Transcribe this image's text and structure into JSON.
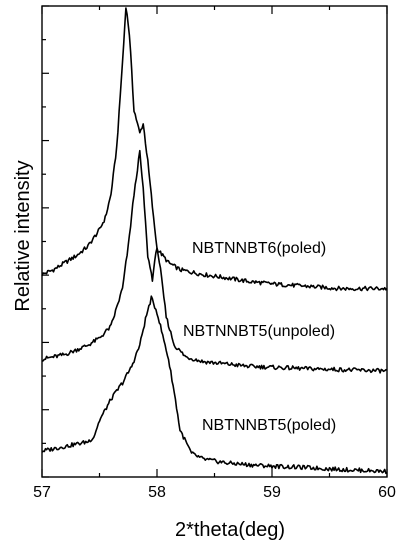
{
  "chart_data": {
    "type": "line",
    "xlabel": "2*theta(deg)",
    "ylabel": "Relative intensity",
    "xlim": [
      57,
      60
    ],
    "x_ticks": [
      57,
      58,
      59,
      60
    ],
    "y_ticks_labeled": false,
    "ylim": [
      0,
      100
    ],
    "grid": false,
    "series": [
      {
        "name": "NBTNNBT6(poled)",
        "points": [
          [
            57.0,
            43.0
          ],
          [
            57.1,
            44.0
          ],
          [
            57.2,
            45.5
          ],
          [
            57.3,
            47.0
          ],
          [
            57.4,
            49.0
          ],
          [
            57.5,
            52.5
          ],
          [
            57.55,
            55.0
          ],
          [
            57.6,
            60.0
          ],
          [
            57.65,
            70.0
          ],
          [
            57.7,
            88.0
          ],
          [
            57.73,
            100.0
          ],
          [
            57.76,
            94.0
          ],
          [
            57.8,
            78.0
          ],
          [
            57.85,
            73.0
          ],
          [
            57.88,
            75.0
          ],
          [
            57.92,
            67.0
          ],
          [
            57.97,
            55.0
          ],
          [
            58.0,
            48.5
          ],
          [
            58.1,
            45.5
          ],
          [
            58.2,
            44.0
          ],
          [
            58.4,
            43.0
          ],
          [
            58.6,
            42.3
          ],
          [
            58.8,
            41.5
          ],
          [
            59.0,
            41.0
          ],
          [
            59.3,
            40.5
          ],
          [
            59.6,
            40.0
          ],
          [
            60.0,
            40.0
          ]
        ]
      },
      {
        "name": "NBTNNBT5(unpoled)",
        "points": [
          [
            57.0,
            25.0
          ],
          [
            57.1,
            25.5
          ],
          [
            57.2,
            26.0
          ],
          [
            57.3,
            27.0
          ],
          [
            57.4,
            28.0
          ],
          [
            57.5,
            29.5
          ],
          [
            57.6,
            32.0
          ],
          [
            57.7,
            40.0
          ],
          [
            57.75,
            49.0
          ],
          [
            57.8,
            60.0
          ],
          [
            57.85,
            69.0
          ],
          [
            57.88,
            61.0
          ],
          [
            57.92,
            47.0
          ],
          [
            57.96,
            42.0
          ],
          [
            58.0,
            49.0
          ],
          [
            58.03,
            44.0
          ],
          [
            58.08,
            34.0
          ],
          [
            58.15,
            28.0
          ],
          [
            58.25,
            25.5
          ],
          [
            58.4,
            24.5
          ],
          [
            58.6,
            24.0
          ],
          [
            58.8,
            23.5
          ],
          [
            59.0,
            23.3
          ],
          [
            59.3,
            23.0
          ],
          [
            59.6,
            22.8
          ],
          [
            60.0,
            22.5
          ]
        ]
      },
      {
        "name": "NBTNNBT5(poled)",
        "points": [
          [
            57.0,
            5.5
          ],
          [
            57.1,
            6.0
          ],
          [
            57.2,
            6.5
          ],
          [
            57.3,
            7.0
          ],
          [
            57.4,
            7.5
          ],
          [
            57.45,
            8.5
          ],
          [
            57.5,
            12.0
          ],
          [
            57.6,
            16.5
          ],
          [
            57.7,
            20.0
          ],
          [
            57.78,
            23.5
          ],
          [
            57.85,
            28.0
          ],
          [
            57.9,
            33.5
          ],
          [
            57.95,
            38.0
          ],
          [
            58.0,
            35.0
          ],
          [
            58.05,
            30.0
          ],
          [
            58.1,
            25.0
          ],
          [
            58.15,
            18.0
          ],
          [
            58.2,
            10.0
          ],
          [
            58.3,
            5.0
          ],
          [
            58.4,
            3.8
          ],
          [
            58.6,
            3.0
          ],
          [
            58.8,
            2.6
          ],
          [
            59.0,
            2.3
          ],
          [
            59.3,
            2.0
          ],
          [
            59.6,
            1.6
          ],
          [
            60.0,
            1.2
          ]
        ]
      }
    ]
  }
}
